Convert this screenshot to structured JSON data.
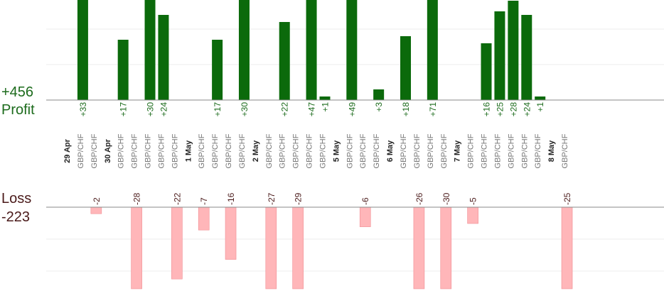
{
  "labels": {
    "profit_total": "+456",
    "profit": "Profit",
    "loss": "Loss",
    "loss_total": "-223"
  },
  "colors": {
    "profit_bar": "#0b6a0b",
    "profit_text": "#1c6b1c",
    "loss_bar": "#ffb6b9",
    "loss_text": "#4a1a1a",
    "axis": "#888888",
    "grid": "#eeeeee",
    "date_text": "#222222",
    "pair_text": "#777777"
  },
  "chart_data": {
    "type": "bar",
    "title": "",
    "subtitle": "",
    "xlabel": "",
    "ylabel": "",
    "dates": [
      "29 Apr",
      "30 Apr",
      "1 May",
      "2 May",
      "5 May",
      "6 May",
      "7 May",
      "8 May"
    ],
    "pair": "GBP/CHF",
    "trades": [
      {
        "date": "29 Apr",
        "value": 33
      },
      {
        "date": "29 Apr",
        "value": -2
      },
      {
        "date": "30 Apr",
        "value": 17
      },
      {
        "date": "30 Apr",
        "value": -28
      },
      {
        "date": "30 Apr",
        "value": 30
      },
      {
        "date": "30 Apr",
        "value": 24
      },
      {
        "date": "30 Apr",
        "value": -22
      },
      {
        "date": "1 May",
        "value": -7
      },
      {
        "date": "1 May",
        "value": 17
      },
      {
        "date": "1 May",
        "value": -16
      },
      {
        "date": "1 May",
        "value": 30
      },
      {
        "date": "2 May",
        "value": -27
      },
      {
        "date": "2 May",
        "value": 22
      },
      {
        "date": "2 May",
        "value": -29
      },
      {
        "date": "2 May",
        "value": 47
      },
      {
        "date": "2 May",
        "value": 1
      },
      {
        "date": "5 May",
        "value": 49
      },
      {
        "date": "5 May",
        "value": -6
      },
      {
        "date": "5 May",
        "value": 3
      },
      {
        "date": "6 May",
        "value": 18
      },
      {
        "date": "6 May",
        "value": -26
      },
      {
        "date": "6 May",
        "value": 71
      },
      {
        "date": "6 May",
        "value": -30
      },
      {
        "date": "7 May",
        "value": -5
      },
      {
        "date": "7 May",
        "value": 16
      },
      {
        "date": "7 May",
        "value": 25
      },
      {
        "date": "7 May",
        "value": 28
      },
      {
        "date": "7 May",
        "value": 24
      },
      {
        "date": "7 May",
        "value": 1
      },
      {
        "date": "8 May",
        "value": -25
      }
    ],
    "profit_axis": {
      "min": 0,
      "max": 30,
      "gridlines": [
        10,
        20
      ],
      "clipped": true
    },
    "loss_axis": {
      "min": -25,
      "max": 0,
      "gridlines": [
        -10,
        -20
      ],
      "clipped": true
    },
    "grid": true,
    "legend": "none"
  }
}
